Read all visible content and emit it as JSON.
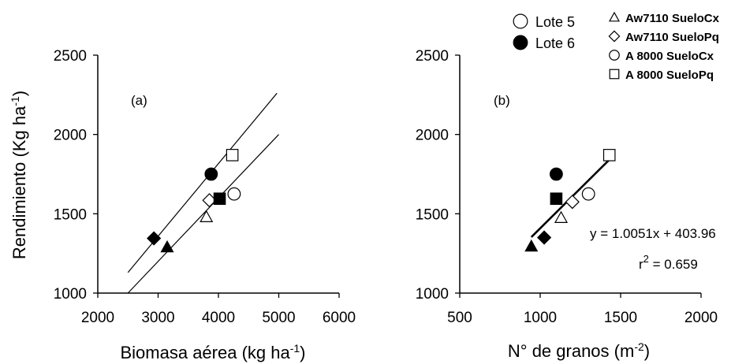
{
  "legend_lots": [
    {
      "label": "Lote 5",
      "marker": "circle",
      "fill": "open"
    },
    {
      "label": "Lote 6",
      "marker": "circle",
      "fill": "filled"
    }
  ],
  "legend_treatments": [
    {
      "label": "Aw7110 SueloCx",
      "marker": "triangle"
    },
    {
      "label": "Aw7110 SueloPq",
      "marker": "diamond"
    },
    {
      "label": "A 8000   SueloCx",
      "marker": "circle"
    },
    {
      "label": "A 8000   SueloPq",
      "marker": "square"
    }
  ],
  "chart_data": [
    {
      "type": "scatter",
      "panel_label": "(a)",
      "xlabel": "Biomasa aérea (kg ha",
      "xlabel_sup": "-1",
      "xlabel_end": ")",
      "ylabel": "Rendimiento (Kg ha",
      "ylabel_sup": "-1",
      "ylabel_end": ")",
      "xlim": [
        2000,
        6000
      ],
      "ylim": [
        1000,
        2500
      ],
      "xticks": [
        "2000",
        "3000",
        "4000",
        "5000",
        "6000"
      ],
      "yticks": [
        "1000",
        "1500",
        "2000",
        "2500"
      ],
      "points": [
        {
          "x": 3150,
          "y": 1290,
          "marker": "triangle",
          "fill": "filled"
        },
        {
          "x": 3800,
          "y": 1480,
          "marker": "triangle",
          "fill": "open"
        },
        {
          "x": 2930,
          "y": 1345,
          "marker": "diamond",
          "fill": "filled"
        },
        {
          "x": 3850,
          "y": 1585,
          "marker": "diamond",
          "fill": "open"
        },
        {
          "x": 3880,
          "y": 1750,
          "marker": "circle",
          "fill": "filled"
        },
        {
          "x": 4260,
          "y": 1625,
          "marker": "circle",
          "fill": "open"
        },
        {
          "x": 4020,
          "y": 1595,
          "marker": "square",
          "fill": "filled"
        },
        {
          "x": 4230,
          "y": 1870,
          "marker": "square",
          "fill": "open"
        }
      ],
      "lines": [
        {
          "x": [
            2500,
            4970
          ],
          "y": [
            1130,
            2260
          ]
        },
        {
          "x": [
            2500,
            5000
          ],
          "y": [
            1000,
            2000
          ]
        }
      ]
    },
    {
      "type": "scatter",
      "panel_label": "(b)",
      "xlabel": "N° de granos (m",
      "xlabel_sup": "-2",
      "xlabel_end": ")",
      "ylabel": "",
      "xlim": [
        500,
        2000
      ],
      "ylim": [
        1000,
        2500
      ],
      "xticks": [
        "500",
        "1000",
        "1500",
        "2000"
      ],
      "yticks": [
        "1000",
        "1500",
        "2000",
        "2500"
      ],
      "points": [
        {
          "x": 945,
          "y": 1295,
          "marker": "triangle",
          "fill": "filled"
        },
        {
          "x": 1130,
          "y": 1475,
          "marker": "triangle",
          "fill": "open"
        },
        {
          "x": 1025,
          "y": 1350,
          "marker": "diamond",
          "fill": "filled"
        },
        {
          "x": 1200,
          "y": 1575,
          "marker": "diamond",
          "fill": "open"
        },
        {
          "x": 1100,
          "y": 1750,
          "marker": "circle",
          "fill": "filled"
        },
        {
          "x": 1300,
          "y": 1625,
          "marker": "circle",
          "fill": "open"
        },
        {
          "x": 1100,
          "y": 1595,
          "marker": "square",
          "fill": "filled"
        },
        {
          "x": 1430,
          "y": 1870,
          "marker": "square",
          "fill": "open"
        }
      ],
      "lines": [
        {
          "x": [
            945,
            1430
          ],
          "y": [
            1353,
            1841
          ]
        }
      ],
      "equation": "y = 1.0051x + 403.96",
      "r2_prefix": "r",
      "r2_sup": "2",
      "r2_value": " = 0.659"
    }
  ]
}
